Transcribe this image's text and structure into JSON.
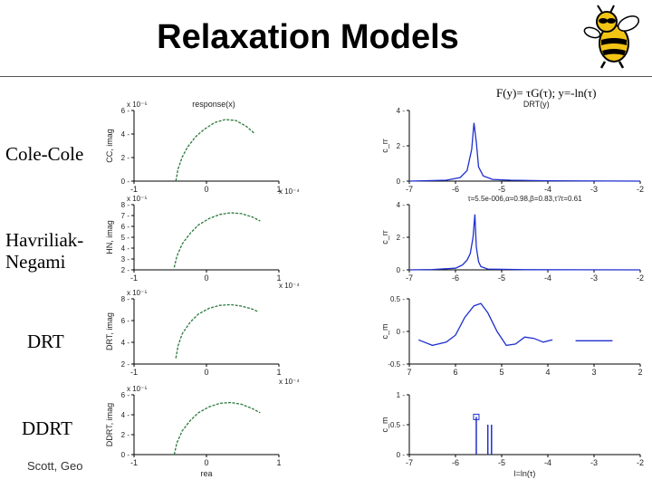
{
  "slide": {
    "title": "Relaxation Models",
    "formula": "F(y)= τG(τ); y=-ln(τ)",
    "footer": "Scott, Geo",
    "row_labels": [
      "Cole-Cole",
      "Havriliak-\nNegami",
      "DRT",
      "DDRT"
    ],
    "colors": {
      "nyquist_curve": "#2a7a3a",
      "dist_curve": "#1f2fd0",
      "axis": "#000000"
    },
    "mascot_icon": "yellow-jacket-bee-icon"
  },
  "chart_data": [
    {
      "type": "line",
      "panel": "cole-cole-nyquist",
      "title": "response(x)",
      "xlabel": "",
      "ylabel": "CC, imag",
      "x_exponent_label": "",
      "y_exponent_label": "x 10⁻⁵",
      "xlim": [
        -1.5,
        1.2
      ],
      "ylim": [
        0,
        7
      ],
      "xticks": [
        "-1",
        "0",
        "1"
      ],
      "yticks": [
        "0",
        "2",
        "4",
        "6"
      ],
      "series": [
        {
          "x": [
            -0.72,
            -0.68,
            -0.6,
            -0.5,
            -0.35,
            -0.2,
            0,
            0.2,
            0.4,
            0.6,
            0.75
          ],
          "y": [
            0,
            1.2,
            2.4,
            3.4,
            4.4,
            5.1,
            5.8,
            6.1,
            6.0,
            5.4,
            4.7
          ]
        }
      ]
    },
    {
      "type": "line",
      "panel": "cole-cole-distribution",
      "title": "DRT(y)",
      "xlabel": "",
      "ylabel": "c_rr",
      "xlim": [
        -7,
        -2
      ],
      "ylim": [
        0,
        4
      ],
      "xticks": [
        "-7",
        "-6",
        "-5",
        "-4",
        "-3",
        "-2"
      ],
      "yticks": [
        "0",
        "2",
        "4"
      ],
      "annotation": "τ=5.5e-006,α=0.98,β=0.83,τ'/τ=0.61",
      "series": [
        {
          "x": [
            -7,
            -6.2,
            -5.9,
            -5.75,
            -5.65,
            -5.6,
            -5.55,
            -5.5,
            -5.4,
            -5.2,
            -4.8,
            -4,
            -2
          ],
          "y": [
            0,
            0.05,
            0.2,
            0.6,
            1.8,
            3.3,
            2.2,
            0.8,
            0.3,
            0.1,
            0.05,
            0.02,
            0
          ]
        }
      ]
    },
    {
      "type": "line",
      "panel": "havriliak-negami-nyquist",
      "title": "",
      "xlabel": "",
      "ylabel": "HN, imag",
      "x_exponent_label": "x 10⁻⁴",
      "y_exponent_label": "x 10⁻⁵",
      "xlim": [
        -1.5,
        1.2
      ],
      "ylim": [
        1,
        9
      ],
      "xticks": [
        "-1",
        "0",
        "1"
      ],
      "yticks": [
        "2",
        "3",
        "4",
        "5",
        "6",
        "7",
        "8"
      ],
      "series": [
        {
          "x": [
            -0.75,
            -0.7,
            -0.6,
            -0.45,
            -0.3,
            -0.1,
            0.1,
            0.3,
            0.5,
            0.7,
            0.85
          ],
          "y": [
            1.3,
            2.7,
            4.2,
            5.5,
            6.5,
            7.3,
            7.8,
            8.0,
            7.9,
            7.5,
            7.0
          ]
        }
      ]
    },
    {
      "type": "line",
      "panel": "havriliak-negami-distribution",
      "title": "",
      "xlabel": "",
      "ylabel": "c_rr",
      "xlim": [
        -7,
        -2
      ],
      "ylim": [
        0,
        4
      ],
      "xticks": [
        "-7",
        "-6",
        "-5",
        "-4",
        "-3",
        "-2"
      ],
      "yticks": [
        "0",
        "2",
        "4"
      ],
      "series": [
        {
          "x": [
            -7,
            -6.5,
            -6.0,
            -5.85,
            -5.75,
            -5.68,
            -5.62,
            -5.58,
            -5.55,
            -5.5,
            -5.45,
            -5.3,
            -4.5,
            -2
          ],
          "y": [
            0,
            0.02,
            0.1,
            0.3,
            0.6,
            1.0,
            2.0,
            3.4,
            1.4,
            0.5,
            0.2,
            0.05,
            0.01,
            0
          ]
        }
      ]
    },
    {
      "type": "line",
      "panel": "drt-nyquist",
      "title": "",
      "xlabel": "",
      "ylabel": "DRT, imag",
      "x_exponent_label": "x 10⁻⁴",
      "y_exponent_label": "x 10⁻⁵",
      "xlim": [
        -1.5,
        1.2
      ],
      "ylim": [
        0,
        9
      ],
      "xticks": [
        "-1",
        "0",
        "1"
      ],
      "yticks": [
        "2",
        "4",
        "6",
        "8"
      ],
      "series": [
        {
          "x": [
            -0.72,
            -0.68,
            -0.6,
            -0.45,
            -0.3,
            -0.1,
            0.1,
            0.3,
            0.5,
            0.7,
            0.82
          ],
          "y": [
            0.8,
            2.5,
            4.2,
            5.8,
            6.9,
            7.7,
            8.1,
            8.2,
            8.0,
            7.6,
            7.2
          ]
        }
      ]
    },
    {
      "type": "line",
      "panel": "drt-distribution",
      "title": "",
      "xlabel": "",
      "ylabel": "c_m",
      "xlim": [
        -7,
        -2
      ],
      "ylim": [
        -0.5,
        0.9
      ],
      "xticks": [
        "7",
        "6",
        "5",
        "4",
        "3",
        "2"
      ],
      "yticks": [
        "-0.5",
        "0",
        "0.5"
      ],
      "series": [
        {
          "x": [
            -6.8,
            -6.5,
            -6.2,
            -6.0,
            -5.8,
            -5.6,
            -5.45,
            -5.3,
            -5.1,
            -4.9,
            -4.7,
            -4.5,
            -4.3,
            -4.1,
            -3.9
          ],
          "y": [
            0.02,
            -0.1,
            -0.03,
            0.12,
            0.5,
            0.75,
            0.8,
            0.6,
            0.2,
            -0.1,
            -0.07,
            0.08,
            0.05,
            -0.03,
            0.02
          ]
        },
        {
          "x": [
            -3.4,
            -2.6
          ],
          "y": [
            0,
            0
          ]
        }
      ]
    },
    {
      "type": "line",
      "panel": "ddrt-nyquist",
      "title": "",
      "xlabel": "rea",
      "ylabel": "DDRT, imag",
      "x_exponent_label": "x 10⁻⁴",
      "y_exponent_label": "x 10⁻⁵",
      "xlim": [
        -1.5,
        1.2
      ],
      "ylim": [
        0,
        7
      ],
      "xticks": [
        "-1",
        "0",
        "1"
      ],
      "yticks": [
        "0",
        "2",
        "4",
        "6"
      ],
      "series": [
        {
          "x": [
            -0.75,
            -0.7,
            -0.6,
            -0.45,
            -0.3,
            -0.1,
            0.1,
            0.3,
            0.5,
            0.7,
            0.85
          ],
          "y": [
            0,
            1.4,
            2.8,
            4.0,
            4.9,
            5.6,
            6.0,
            6.1,
            5.9,
            5.4,
            4.9
          ]
        }
      ]
    },
    {
      "type": "bar",
      "panel": "ddrt-distribution",
      "title": "",
      "xlabel": "l=ln(τ)",
      "ylabel": "c_m",
      "xlim": [
        -7,
        -2
      ],
      "ylim": [
        0,
        1
      ],
      "xticks": [
        "-7",
        "-6",
        "-5",
        "-4",
        "-3",
        "-2"
      ],
      "yticks": [
        "0",
        "0.5",
        "1"
      ],
      "stems": [
        {
          "x": -5.55,
          "y": 0.63,
          "marker": "square"
        },
        {
          "x": -5.3,
          "y": 0.5
        },
        {
          "x": -5.22,
          "y": 0.5
        }
      ]
    }
  ]
}
